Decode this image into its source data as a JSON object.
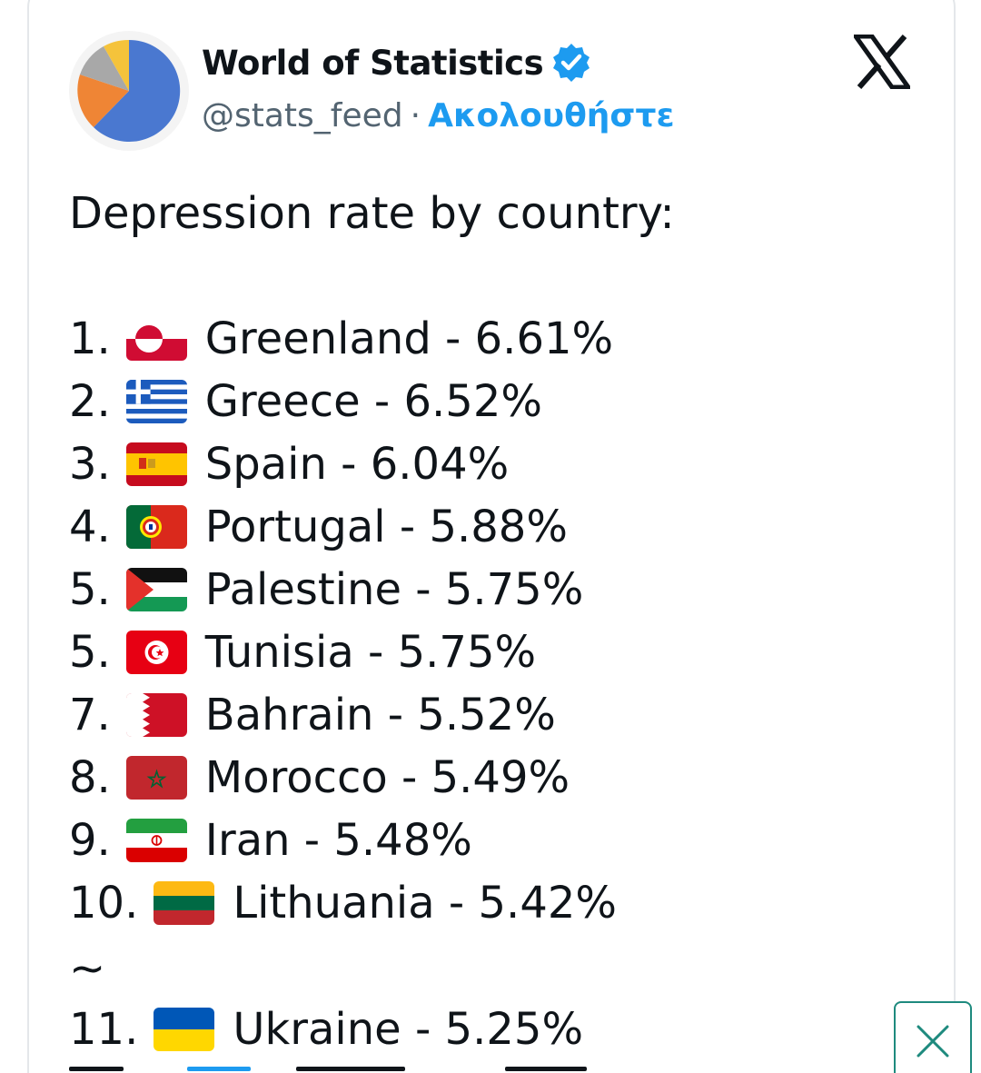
{
  "author": {
    "display_name": "World of Statistics",
    "handle": "@stats_feed",
    "separator": "·",
    "follow_label": "Ακολουθήστε",
    "verified_color": "#1d9bf0"
  },
  "icons": {
    "avatar": "pie-chart-avatar",
    "verified": "verified-badge-icon",
    "brand": "x-logo-icon",
    "close": "close-icon"
  },
  "tweet": {
    "intro": "Depression rate by country:",
    "separator": "~",
    "items": [
      {
        "rank": "1.",
        "flag": "greenland-flag",
        "country": "Greenland",
        "rate": "6.61%"
      },
      {
        "rank": "2.",
        "flag": "greece-flag",
        "country": "Greece",
        "rate": "6.52%"
      },
      {
        "rank": "3.",
        "flag": "spain-flag",
        "country": "Spain",
        "rate": "6.04%"
      },
      {
        "rank": "4.",
        "flag": "portugal-flag",
        "country": "Portugal",
        "rate": "5.88%"
      },
      {
        "rank": "5.",
        "flag": "palestine-flag",
        "country": "Palestine",
        "rate": "5.75%"
      },
      {
        "rank": "5.",
        "flag": "tunisia-flag",
        "country": "Tunisia",
        "rate": "5.75%"
      },
      {
        "rank": "7.",
        "flag": "bahrain-flag",
        "country": "Bahrain",
        "rate": "5.52%"
      },
      {
        "rank": "8.",
        "flag": "morocco-flag",
        "country": "Morocco",
        "rate": "5.49%"
      },
      {
        "rank": "9.",
        "flag": "iran-flag",
        "country": "Iran",
        "rate": "5.48%"
      },
      {
        "rank": "10.",
        "flag": "lithuania-flag",
        "country": "Lithuania",
        "rate": "5.42%"
      },
      {
        "rank": "11.",
        "flag": "ukraine-flag",
        "country": "Ukraine",
        "rate": "5.25%"
      }
    ]
  }
}
